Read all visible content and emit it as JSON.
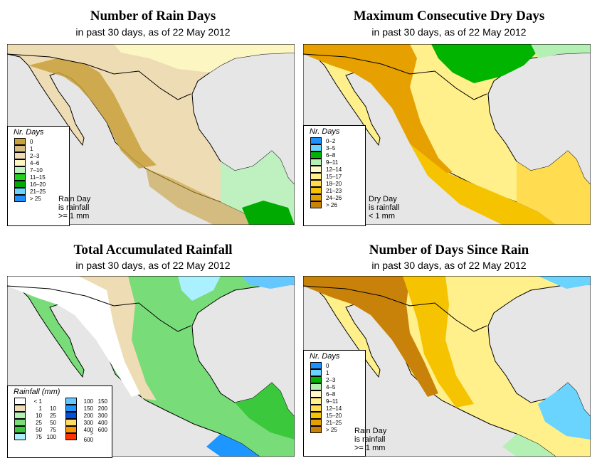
{
  "panels": {
    "rain_days": {
      "title": "Number of Rain Days",
      "subtitle": "in past 30 days, as of  22 May 2012",
      "legend_title": "Nr. Days",
      "legend": [
        {
          "label": "0",
          "color": "#c8a03c"
        },
        {
          "label": "1",
          "color": "#d8bc86"
        },
        {
          "label": "2–3",
          "color": "#eedcb4"
        },
        {
          "label": "4–6",
          "color": "#fbf6c2"
        },
        {
          "label": "7–10",
          "color": "#bff0bf"
        },
        {
          "label": "11–15",
          "color": "#1ed21e"
        },
        {
          "label": "16–20",
          "color": "#00aa00"
        },
        {
          "label": "21–25",
          "color": "#6ad4ff"
        },
        {
          "label": "> 25",
          "color": "#1e90ff"
        }
      ],
      "note": [
        "Rain Day",
        "is rainfall",
        ">= 1 mm"
      ]
    },
    "dry_days": {
      "title": "Maximum Consecutive Dry Days",
      "subtitle": "in past 30 days, as of  22 May 2012",
      "legend_title": "Nr. Days",
      "legend": [
        {
          "label": "0–2",
          "color": "#1e90ff"
        },
        {
          "label": "3–5",
          "color": "#6ad4ff"
        },
        {
          "label": "6–8",
          "color": "#00b400"
        },
        {
          "label": "9–11",
          "color": "#b4f0b4"
        },
        {
          "label": "12–14",
          "color": "#fffac8"
        },
        {
          "label": "15–17",
          "color": "#fff08c"
        },
        {
          "label": "18–20",
          "color": "#ffdc50"
        },
        {
          "label": "21–23",
          "color": "#f5c300"
        },
        {
          "label": "24–26",
          "color": "#e6a000"
        },
        {
          "label": "> 26",
          "color": "#c8820a"
        }
      ],
      "note": [
        "Dry Day",
        "is rainfall",
        "< 1 mm"
      ]
    },
    "total_rain": {
      "title": "Total Accumulated Rainfall",
      "subtitle": "in past 30 days, as of  22 May 2012",
      "legend_title": "Rainfall (mm)",
      "legend": [
        {
          "lo": "< 1",
          "hi": "",
          "color": "#ffffff"
        },
        {
          "lo": "1",
          "hi": "10",
          "color": "#eedcb4"
        },
        {
          "lo": "10",
          "hi": "25",
          "color": "#b4f0b4"
        },
        {
          "lo": "25",
          "hi": "50",
          "color": "#78dc78"
        },
        {
          "lo": "50",
          "hi": "75",
          "color": "#3cc83c"
        },
        {
          "lo": "75",
          "hi": "100",
          "color": "#aaf0ff"
        },
        {
          "lo": "100",
          "hi": "150",
          "color": "#64c8ff"
        },
        {
          "lo": "150",
          "hi": "200",
          "color": "#1e96ff"
        },
        {
          "lo": "200",
          "hi": "300",
          "color": "#0050dc"
        },
        {
          "lo": "300",
          "hi": "400",
          "color": "#ffdc64"
        },
        {
          "lo": "400",
          "hi": "600",
          "color": "#ff9600"
        },
        {
          "lo": "> 600",
          "hi": "",
          "color": "#ff3200"
        }
      ]
    },
    "since_rain": {
      "title": "Number of Days Since Rain",
      "subtitle": "in past 30 days, as of  22 May 2012",
      "legend_title": "Nr. Days",
      "legend": [
        {
          "label": "0",
          "color": "#1e90ff"
        },
        {
          "label": "1",
          "color": "#6ad4ff"
        },
        {
          "label": "2–3",
          "color": "#00b400"
        },
        {
          "label": "4–5",
          "color": "#b4f0b4"
        },
        {
          "label": "6–8",
          "color": "#fffac8"
        },
        {
          "label": "9–11",
          "color": "#fff08c"
        },
        {
          "label": "12–14",
          "color": "#ffdc50"
        },
        {
          "label": "15–20",
          "color": "#f5c300"
        },
        {
          "label": "21–25",
          "color": "#e6a000"
        },
        {
          "label": "> 25",
          "color": "#c8820a"
        }
      ],
      "note": [
        "Rain Day",
        "is rainfall",
        ">= 1 mm"
      ]
    }
  },
  "colors": {
    "ocean": "#e6e6e6",
    "border": "#000000"
  }
}
